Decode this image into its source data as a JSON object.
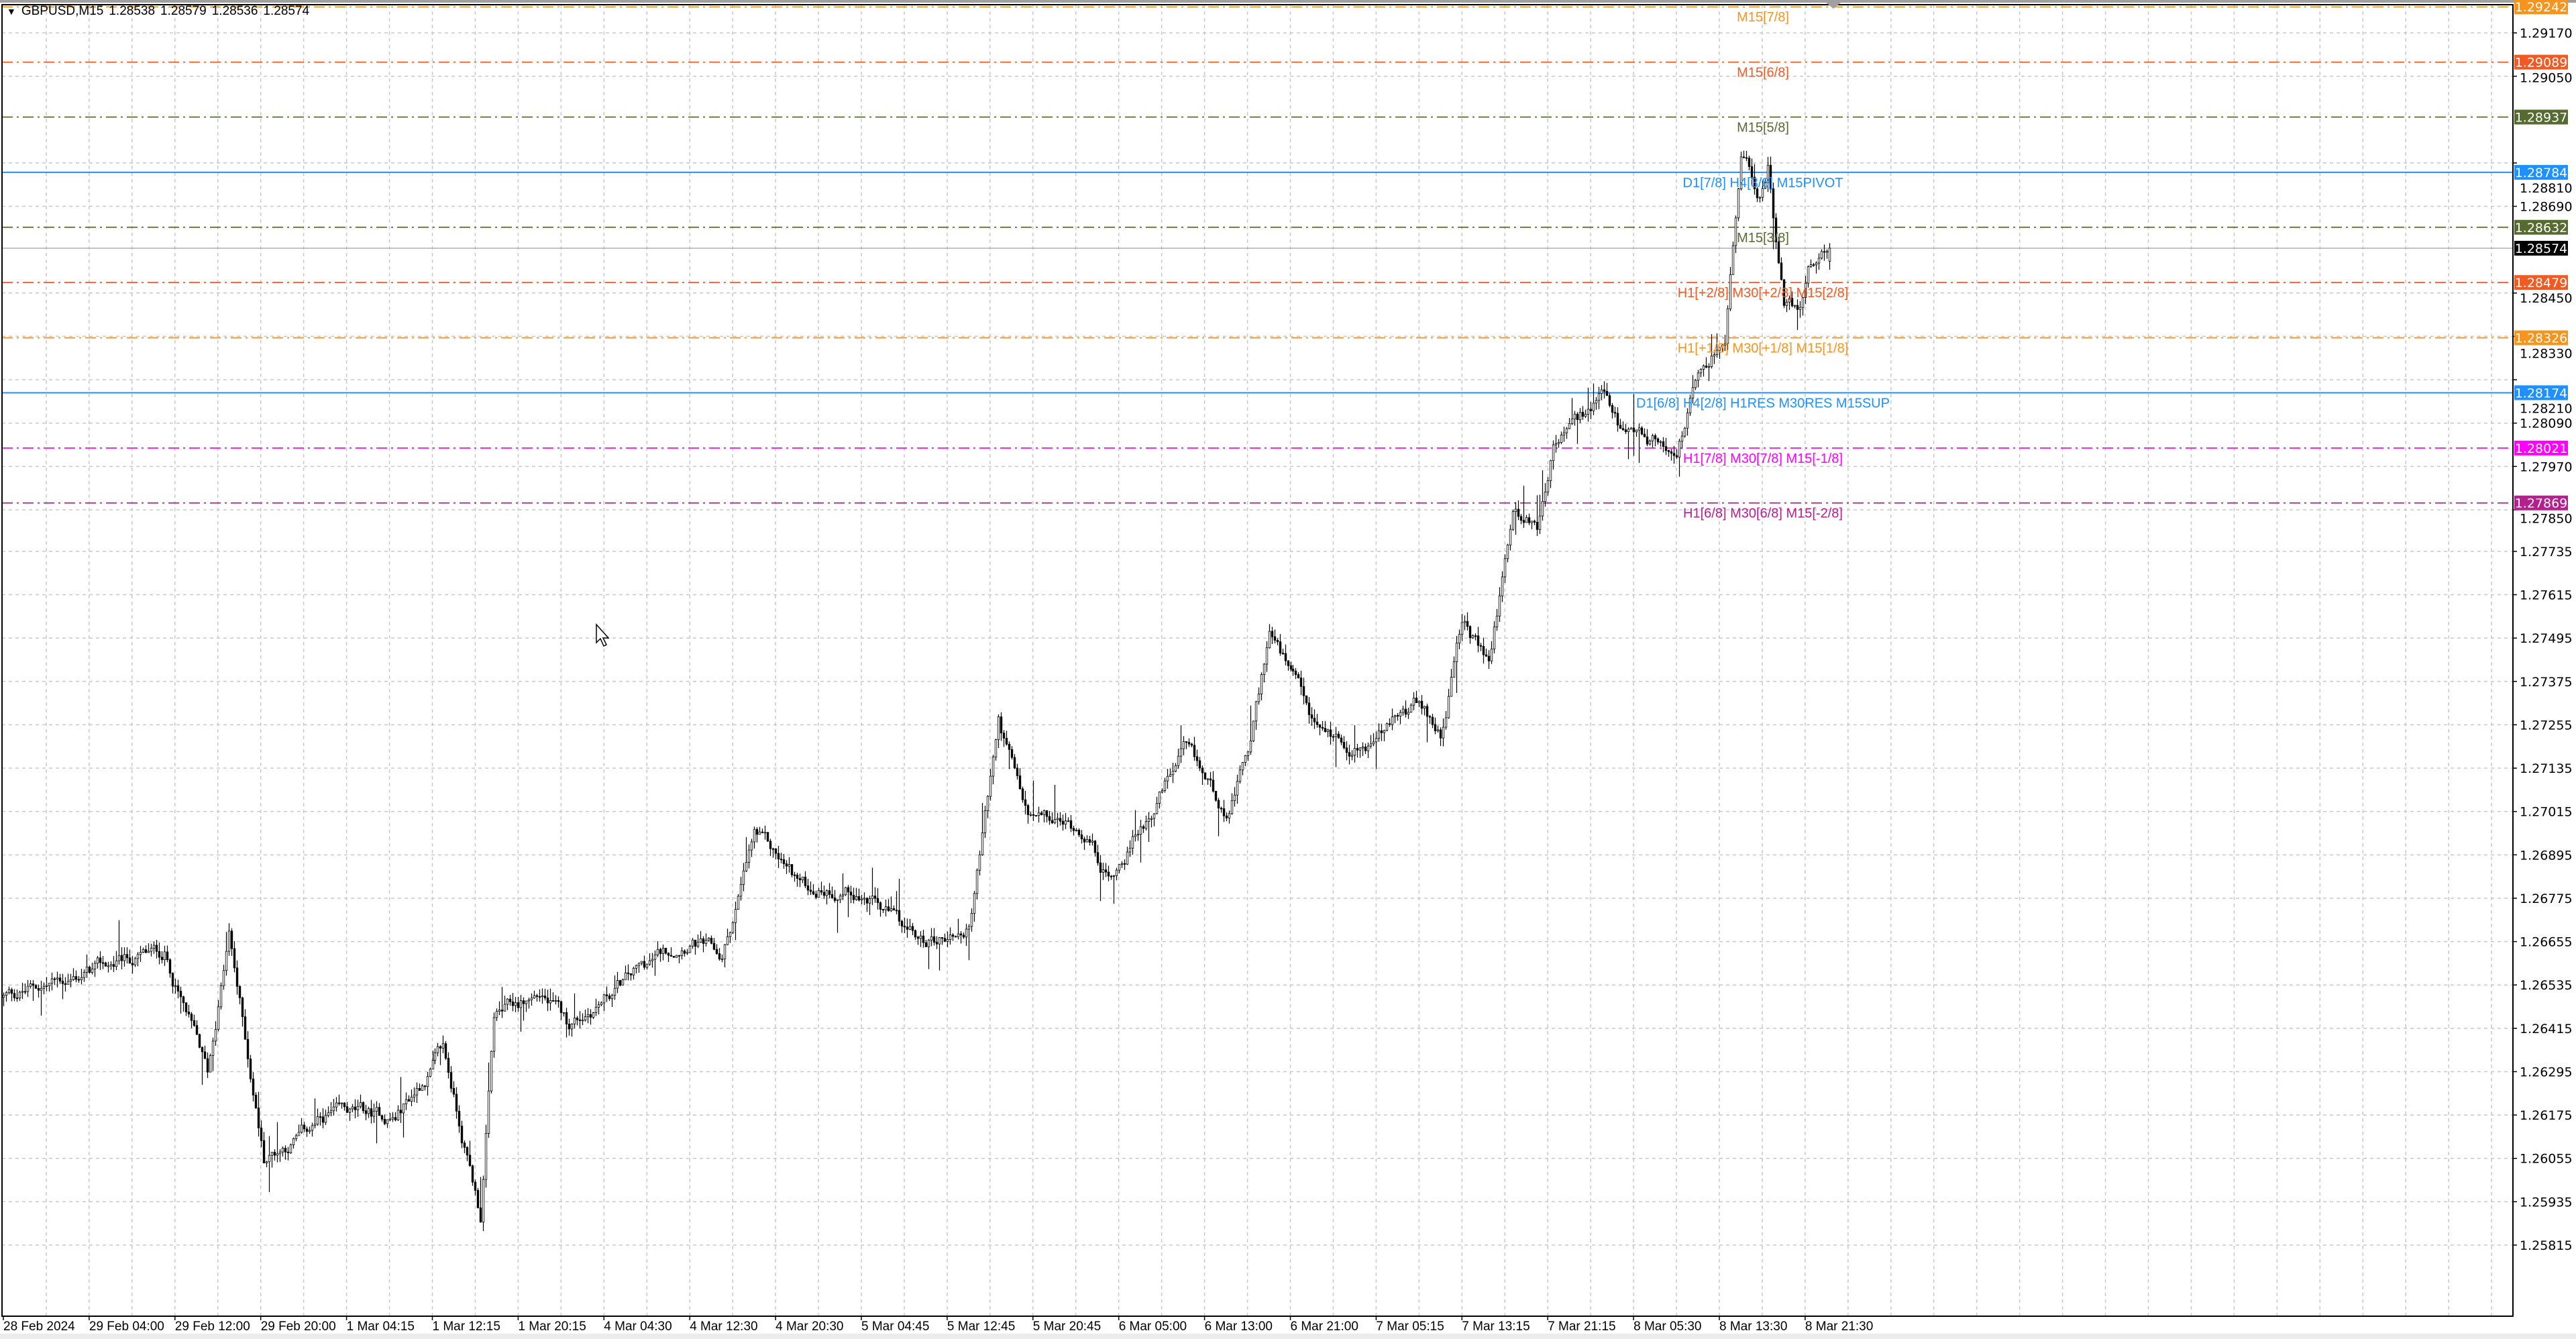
{
  "header": {
    "menu_icon": "triangle-down-icon",
    "symbol": "GBPUSD,M15",
    "open": "1.28538",
    "high": "1.28579",
    "low": "1.28536",
    "close": "1.28574"
  },
  "chart_data": {
    "type": "candlestick",
    "symbol": "GBPUSD",
    "timeframe": "M15",
    "ylim": [
      1.2576,
      1.2928
    ],
    "grid": true,
    "price_ticks": [
      "1.29170",
      "1.29050",
      "1.28810",
      "1.28690",
      "1.28450",
      "1.28330",
      "1.28210",
      "1.28090",
      "1.27970",
      "1.27850",
      "1.27735",
      "1.27615",
      "1.27495",
      "1.27375",
      "1.27255",
      "1.27135",
      "1.27015",
      "1.26895",
      "1.26775",
      "1.26655",
      "1.26535",
      "1.26415",
      "1.26295",
      "1.26175",
      "1.26055",
      "1.25935",
      "1.25815"
    ],
    "time_ticks": [
      "28 Feb 2024",
      "29 Feb 04:00",
      "29 Feb 12:00",
      "29 Feb 20:00",
      "1 Mar 04:15",
      "1 Mar 12:15",
      "1 Mar 20:15",
      "4 Mar 04:30",
      "4 Mar 12:30",
      "4 Mar 20:30",
      "5 Mar 04:45",
      "5 Mar 12:45",
      "5 Mar 20:45",
      "6 Mar 05:00",
      "6 Mar 13:00",
      "6 Mar 21:00",
      "7 Mar 05:15",
      "7 Mar 13:15",
      "7 Mar 21:15",
      "8 Mar 05:30",
      "8 Mar 13:30",
      "8 Mar 21:30"
    ],
    "price_path_approx": [
      [
        "28 Feb 20:00",
        1.26501
      ],
      [
        "29 Feb 05:00",
        1.26579
      ],
      [
        "29 Feb 11:00",
        1.26624
      ],
      [
        "29 Feb 15:00",
        1.26283
      ],
      [
        "29 Feb 17:00",
        1.2667
      ],
      [
        "29 Feb 20:15",
        1.26056
      ],
      [
        "1 Mar 02:30",
        1.2617
      ],
      [
        "1 Mar 08:45",
        1.2617
      ],
      [
        "1 Mar 13:15",
        1.26352
      ],
      [
        "1 Mar 16:45",
        1.25897
      ],
      [
        "1 Mar 18:00",
        1.26443
      ],
      [
        "1 Mar 22:30",
        1.26511
      ],
      [
        "4 Mar 01:00",
        1.2642
      ],
      [
        "4 Mar 06:30",
        1.26547
      ],
      [
        "4 Mar 12:30",
        1.2667
      ],
      [
        "4 Mar 15:30",
        1.26602
      ],
      [
        "4 Mar 18:30",
        1.26943
      ],
      [
        "4 Mar 23:15",
        1.26806
      ],
      [
        "5 Mar 04:00",
        1.26806
      ],
      [
        "5 Mar 10:15",
        1.26647
      ],
      [
        "5 Mar 14:45",
        1.26693
      ],
      [
        "5 Mar 17:30",
        1.27261
      ],
      [
        "5 Mar 20:15",
        1.26988
      ],
      [
        "6 Mar 01:45",
        1.26966
      ],
      [
        "6 Mar 04:00",
        1.26829
      ],
      [
        "6 Mar 11:00",
        1.2717
      ],
      [
        "6 Mar 15:15",
        1.27011
      ],
      [
        "6 Mar 17:15",
        1.27193
      ],
      [
        "6 Mar 19:00",
        1.27511
      ],
      [
        "6 Mar 23:15",
        1.27238
      ],
      [
        "7 Mar 04:00",
        1.27193
      ],
      [
        "7 Mar 08:45",
        1.27306
      ],
      [
        "7 Mar 11:15",
        1.27238
      ],
      [
        "7 Mar 13:15",
        1.27534
      ],
      [
        "7 Mar 15:45",
        1.2742
      ],
      [
        "7 Mar 18:00",
        1.27852
      ],
      [
        "7 Mar 20:15",
        1.27806
      ],
      [
        "7 Mar 21:45",
        1.28034
      ],
      [
        "8 Mar 02:30",
        1.28148
      ],
      [
        "8 Mar 04:45",
        1.28034
      ],
      [
        "8 Mar 09:30",
        1.28025
      ],
      [
        "8 Mar 11:00",
        1.2817
      ],
      [
        "8 Mar 14:00",
        1.28329
      ],
      [
        "8 Mar 15:30",
        1.28829
      ],
      [
        "8 Mar 17:15",
        1.28715
      ],
      [
        "8 Mar 18:00",
        1.28806
      ],
      [
        "8 Mar 19:30",
        1.2842
      ],
      [
        "8 Mar 21:00",
        1.28397
      ],
      [
        "8 Mar 21:45",
        1.28534
      ],
      [
        "8 Mar 23:45",
        1.28574
      ]
    ],
    "current_price": {
      "value": 1.28574,
      "label": "1.28574",
      "color": "#000000"
    },
    "levels": [
      {
        "price": 1.29242,
        "price_label": "1.29242",
        "text": "M15[7/8]",
        "color": "#f7941d",
        "style": "dashdot"
      },
      {
        "price": 1.29089,
        "price_label": "1.29089",
        "text": "M15[6/8]",
        "color": "#f15a22",
        "style": "dashdot"
      },
      {
        "price": 1.28937,
        "price_label": "1.28937",
        "text": "M15[5/8]",
        "color": "#556b2f",
        "style": "dashdot"
      },
      {
        "price": 1.28784,
        "price_label": "1.28784",
        "text": "D1[7/8] H4[3/8] M15PIVOT",
        "color": "#1e90ff",
        "style": "solid"
      },
      {
        "price": 1.28632,
        "price_label": "1.28632",
        "text": "M15[3/8]",
        "color": "#556b2f",
        "style": "dashdot"
      },
      {
        "price": 1.28479,
        "price_label": "1.28479",
        "text": "H1[+2/8] M30[+2/8] M15[2/8]",
        "color": "#f15a22",
        "style": "dashdot"
      },
      {
        "price": 1.28326,
        "price_label": "1.28326",
        "text": "H1[+1/8] M30[+1/8] M15[1/8]",
        "color": "#f7941d",
        "style": "dashdot"
      },
      {
        "price": 1.28174,
        "price_label": "1.28174",
        "text": "D1[6/8] H4[2/8] H1RES M30RES M15SUP",
        "color": "#1e90ff",
        "style": "solid"
      },
      {
        "price": 1.28021,
        "price_label": "1.28021",
        "text": "H1[7/8] M30[7/8] M15[-1/8]",
        "color": "#ff00ff",
        "style": "dashdot"
      },
      {
        "price": 1.27869,
        "price_label": "1.27869",
        "text": "H1[6/8] M30[6/8] M15[-2/8]",
        "color": "#b5208f",
        "style": "dashdot"
      }
    ]
  }
}
